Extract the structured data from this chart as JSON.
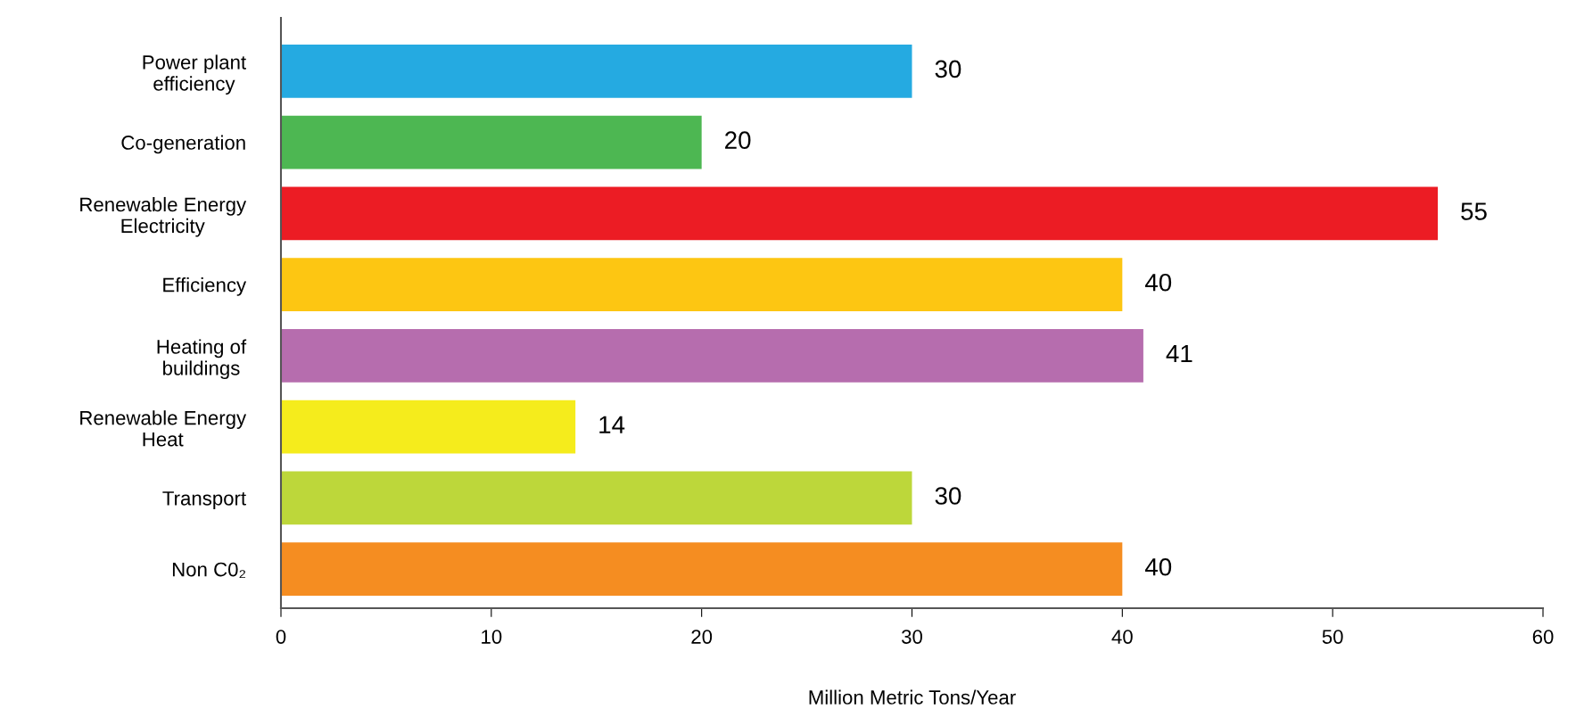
{
  "chart_data": {
    "type": "bar",
    "orientation": "horizontal",
    "xlabel": "Million Metric Tons/Year",
    "categories": [
      "Power plant\nefficiency",
      "Co-generation",
      "Renewable Energy\nElectricity",
      "Efficiency",
      "Heating of\nbuildings",
      "Renewable Energy\nHeat",
      "Transport",
      "Non C0₂"
    ],
    "values": [
      30,
      20,
      55,
      40,
      41,
      14,
      30,
      40
    ],
    "colors": [
      "#25aae1",
      "#4db752",
      "#ec1c24",
      "#fdc612",
      "#b66dae",
      "#f5ec1c",
      "#bdd73a",
      "#f58d21"
    ],
    "xlim": [
      0,
      60
    ],
    "xticks": [
      0,
      10,
      20,
      30,
      40,
      50,
      60
    ],
    "data_labels": true,
    "grid": false,
    "legend": false
  }
}
